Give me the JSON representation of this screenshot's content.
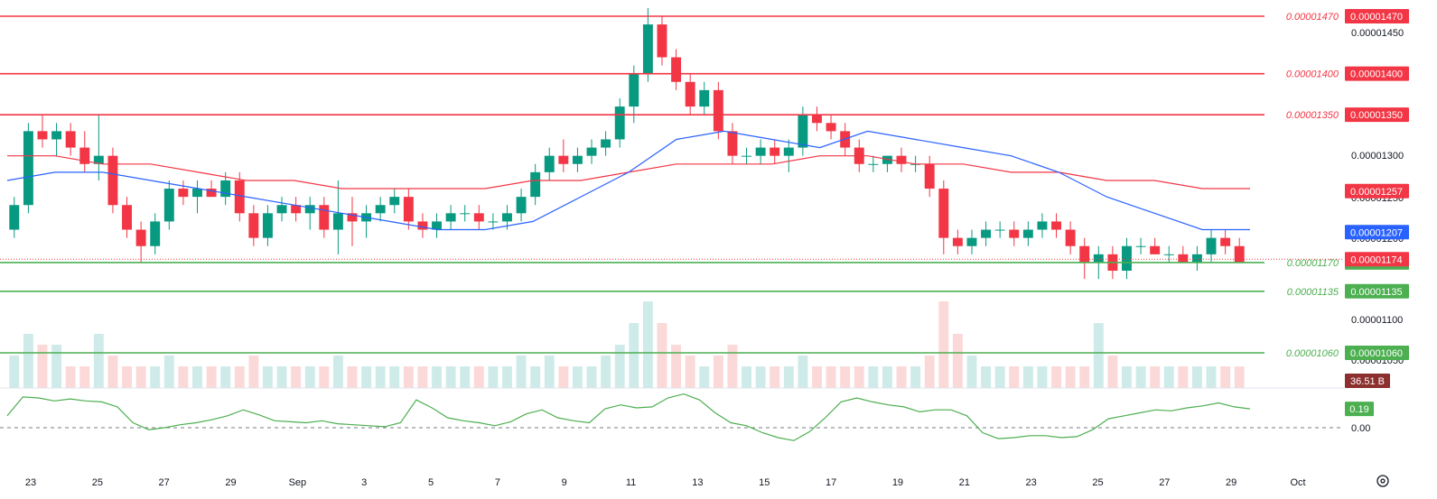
{
  "chart_data": {
    "type": "candlestick",
    "title": "",
    "x_ticks": [
      "23",
      "25",
      "27",
      "29",
      "Sep",
      "3",
      "5",
      "7",
      "9",
      "11",
      "13",
      "15",
      "17",
      "19",
      "21",
      "23",
      "25",
      "27",
      "29",
      "Oct"
    ],
    "y_ticks": [
      "0.00001450",
      "0.00001300",
      "0.00001250",
      "0.00001200",
      "0.00001100",
      "0.00001050"
    ],
    "ylim": [
      1.03e-05,
      1.48e-05
    ],
    "resistance_levels": [
      {
        "label": "0.00001470",
        "value": 1.47e-05,
        "color": "#f23645"
      },
      {
        "label": "0.00001400",
        "value": 1.4e-05,
        "color": "#f23645"
      },
      {
        "label": "0.00001350",
        "value": 1.35e-05,
        "color": "#f23645"
      }
    ],
    "support_levels": [
      {
        "label": "0.00001170",
        "value": 1.17e-05,
        "color": "#4caf50"
      },
      {
        "label": "0.00001135",
        "value": 1.135e-05,
        "color": "#4caf50"
      },
      {
        "label": "0.00001060",
        "value": 1.06e-05,
        "color": "#4caf50"
      }
    ],
    "price_tags": [
      {
        "label": "0.00001257",
        "value": 1.257e-05,
        "color": "#f23645"
      },
      {
        "label": "0.00001207",
        "value": 1.207e-05,
        "color": "#2962ff"
      },
      {
        "label": "0.00001174",
        "value": 1.174e-05,
        "color": "#f23645"
      }
    ],
    "volume_tag": "36.51 B",
    "oscillator": {
      "value_label": "0.19",
      "zero_label": "0.00"
    },
    "ma_fast": [
      1.27e-05,
      1.28e-05,
      1.28e-05,
      1.27e-05,
      1.26e-05,
      1.25e-05,
      1.24e-05,
      1.23e-05,
      1.22e-05,
      1.21e-05,
      1.21e-05,
      1.22e-05,
      1.25e-05,
      1.28e-05,
      1.32e-05,
      1.33e-05,
      1.32e-05,
      1.31e-05,
      1.33e-05,
      1.32e-05,
      1.31e-05,
      1.3e-05,
      1.28e-05,
      1.25e-05,
      1.23e-05,
      1.21e-05,
      1.21e-05
    ],
    "ma_slow": [
      1.3e-05,
      1.3e-05,
      1.29e-05,
      1.29e-05,
      1.28e-05,
      1.27e-05,
      1.27e-05,
      1.26e-05,
      1.26e-05,
      1.26e-05,
      1.26e-05,
      1.27e-05,
      1.27e-05,
      1.28e-05,
      1.29e-05,
      1.29e-05,
      1.29e-05,
      1.3e-05,
      1.3e-05,
      1.29e-05,
      1.29e-05,
      1.28e-05,
      1.28e-05,
      1.27e-05,
      1.27e-05,
      1.26e-05,
      1.26e-05
    ],
    "candles": [
      [
        1.21e-05,
        1.25e-05,
        1.2e-05,
        1.24e-05
      ],
      [
        1.24e-05,
        1.34e-05,
        1.23e-05,
        1.33e-05
      ],
      [
        1.33e-05,
        1.35e-05,
        1.31e-05,
        1.32e-05
      ],
      [
        1.32e-05,
        1.34e-05,
        1.3e-05,
        1.33e-05
      ],
      [
        1.33e-05,
        1.34e-05,
        1.3e-05,
        1.31e-05
      ],
      [
        1.31e-05,
        1.33e-05,
        1.28e-05,
        1.29e-05
      ],
      [
        1.29e-05,
        1.35e-05,
        1.27e-05,
        1.3e-05
      ],
      [
        1.3e-05,
        1.31e-05,
        1.23e-05,
        1.24e-05
      ],
      [
        1.24e-05,
        1.25e-05,
        1.2e-05,
        1.21e-05
      ],
      [
        1.21e-05,
        1.22e-05,
        1.17e-05,
        1.19e-05
      ],
      [
        1.19e-05,
        1.23e-05,
        1.18e-05,
        1.22e-05
      ],
      [
        1.22e-05,
        1.27e-05,
        1.21e-05,
        1.26e-05
      ],
      [
        1.26e-05,
        1.27e-05,
        1.24e-05,
        1.25e-05
      ],
      [
        1.25e-05,
        1.27e-05,
        1.23e-05,
        1.26e-05
      ],
      [
        1.26e-05,
        1.27e-05,
        1.25e-05,
        1.25e-05
      ],
      [
        1.25e-05,
        1.28e-05,
        1.24e-05,
        1.27e-05
      ],
      [
        1.27e-05,
        1.28e-05,
        1.22e-05,
        1.23e-05
      ],
      [
        1.23e-05,
        1.24e-05,
        1.19e-05,
        1.2e-05
      ],
      [
        1.2e-05,
        1.24e-05,
        1.19e-05,
        1.23e-05
      ],
      [
        1.23e-05,
        1.25e-05,
        1.22e-05,
        1.24e-05
      ],
      [
        1.24e-05,
        1.25e-05,
        1.22e-05,
        1.23e-05
      ],
      [
        1.23e-05,
        1.25e-05,
        1.21e-05,
        1.24e-05
      ],
      [
        1.24e-05,
        1.25e-05,
        1.2e-05,
        1.21e-05
      ],
      [
        1.21e-05,
        1.27e-05,
        1.18e-05,
        1.23e-05
      ],
      [
        1.23e-05,
        1.25e-05,
        1.19e-05,
        1.22e-05
      ],
      [
        1.22e-05,
        1.24e-05,
        1.2e-05,
        1.23e-05
      ],
      [
        1.23e-05,
        1.25e-05,
        1.22e-05,
        1.24e-05
      ],
      [
        1.24e-05,
        1.26e-05,
        1.23e-05,
        1.25e-05
      ],
      [
        1.25e-05,
        1.26e-05,
        1.21e-05,
        1.22e-05
      ],
      [
        1.22e-05,
        1.23e-05,
        1.2e-05,
        1.21e-05
      ],
      [
        1.21e-05,
        1.23e-05,
        1.2e-05,
        1.22e-05
      ],
      [
        1.22e-05,
        1.24e-05,
        1.21e-05,
        1.23e-05
      ],
      [
        1.23e-05,
        1.24e-05,
        1.22e-05,
        1.23e-05
      ],
      [
        1.23e-05,
        1.24e-05,
        1.21e-05,
        1.22e-05
      ],
      [
        1.22e-05,
        1.23e-05,
        1.21e-05,
        1.22e-05
      ],
      [
        1.22e-05,
        1.24e-05,
        1.21e-05,
        1.23e-05
      ],
      [
        1.23e-05,
        1.26e-05,
        1.22e-05,
        1.25e-05
      ],
      [
        1.25e-05,
        1.29e-05,
        1.24e-05,
        1.28e-05
      ],
      [
        1.28e-05,
        1.31e-05,
        1.27e-05,
        1.3e-05
      ],
      [
        1.3e-05,
        1.32e-05,
        1.28e-05,
        1.29e-05
      ],
      [
        1.29e-05,
        1.31e-05,
        1.28e-05,
        1.3e-05
      ],
      [
        1.3e-05,
        1.32e-05,
        1.29e-05,
        1.31e-05
      ],
      [
        1.31e-05,
        1.33e-05,
        1.3e-05,
        1.32e-05
      ],
      [
        1.32e-05,
        1.37e-05,
        1.31e-05,
        1.36e-05
      ],
      [
        1.36e-05,
        1.41e-05,
        1.34e-05,
        1.4e-05
      ],
      [
        1.4e-05,
        1.48e-05,
        1.39e-05,
        1.46e-05
      ],
      [
        1.46e-05,
        1.47e-05,
        1.41e-05,
        1.42e-05
      ],
      [
        1.42e-05,
        1.43e-05,
        1.38e-05,
        1.39e-05
      ],
      [
        1.39e-05,
        1.4e-05,
        1.35e-05,
        1.36e-05
      ],
      [
        1.36e-05,
        1.39e-05,
        1.35e-05,
        1.38e-05
      ],
      [
        1.38e-05,
        1.39e-05,
        1.32e-05,
        1.33e-05
      ],
      [
        1.33e-05,
        1.34e-05,
        1.29e-05,
        1.3e-05
      ],
      [
        1.3e-05,
        1.31e-05,
        1.29e-05,
        1.3e-05
      ],
      [
        1.3e-05,
        1.32e-05,
        1.29e-05,
        1.31e-05
      ],
      [
        1.31e-05,
        1.32e-05,
        1.29e-05,
        1.3e-05
      ],
      [
        1.3e-05,
        1.32e-05,
        1.28e-05,
        1.31e-05
      ],
      [
        1.31e-05,
        1.36e-05,
        1.3e-05,
        1.35e-05
      ],
      [
        1.35e-05,
        1.36e-05,
        1.33e-05,
        1.34e-05
      ],
      [
        1.34e-05,
        1.35e-05,
        1.32e-05,
        1.33e-05
      ],
      [
        1.33e-05,
        1.34e-05,
        1.3e-05,
        1.31e-05
      ],
      [
        1.31e-05,
        1.32e-05,
        1.28e-05,
        1.29e-05
      ],
      [
        1.29e-05,
        1.3e-05,
        1.28e-05,
        1.29e-05
      ],
      [
        1.29e-05,
        1.3e-05,
        1.28e-05,
        1.3e-05
      ],
      [
        1.3e-05,
        1.31e-05,
        1.28e-05,
        1.29e-05
      ],
      [
        1.29e-05,
        1.3e-05,
        1.28e-05,
        1.29e-05
      ],
      [
        1.29e-05,
        1.3e-05,
        1.25e-05,
        1.26e-05
      ],
      [
        1.26e-05,
        1.27e-05,
        1.18e-05,
        1.2e-05
      ],
      [
        1.2e-05,
        1.21e-05,
        1.18e-05,
        1.19e-05
      ],
      [
        1.19e-05,
        1.21e-05,
        1.18e-05,
        1.2e-05
      ],
      [
        1.2e-05,
        1.22e-05,
        1.19e-05,
        1.21e-05
      ],
      [
        1.21e-05,
        1.22e-05,
        1.2e-05,
        1.21e-05
      ],
      [
        1.21e-05,
        1.22e-05,
        1.19e-05,
        1.2e-05
      ],
      [
        1.2e-05,
        1.22e-05,
        1.19e-05,
        1.21e-05
      ],
      [
        1.21e-05,
        1.23e-05,
        1.2e-05,
        1.22e-05
      ],
      [
        1.22e-05,
        1.23e-05,
        1.2e-05,
        1.21e-05
      ],
      [
        1.21e-05,
        1.22e-05,
        1.18e-05,
        1.19e-05
      ],
      [
        1.19e-05,
        1.2e-05,
        1.15e-05,
        1.17e-05
      ],
      [
        1.17e-05,
        1.19e-05,
        1.15e-05,
        1.18e-05
      ],
      [
        1.18e-05,
        1.19e-05,
        1.15e-05,
        1.16e-05
      ],
      [
        1.16e-05,
        1.2e-05,
        1.15e-05,
        1.19e-05
      ],
      [
        1.19e-05,
        1.2e-05,
        1.18e-05,
        1.19e-05
      ],
      [
        1.19e-05,
        1.2e-05,
        1.18e-05,
        1.18e-05
      ],
      [
        1.18e-05,
        1.19e-05,
        1.17e-05,
        1.18e-05
      ],
      [
        1.18e-05,
        1.19e-05,
        1.17e-05,
        1.17e-05
      ],
      [
        1.17e-05,
        1.19e-05,
        1.16e-05,
        1.18e-05
      ],
      [
        1.18e-05,
        1.21e-05,
        1.17e-05,
        1.2e-05
      ],
      [
        1.2e-05,
        1.21e-05,
        1.18e-05,
        1.19e-05
      ],
      [
        1.19e-05,
        1.2e-05,
        1.17e-05,
        1.17e-05
      ]
    ],
    "volumes": [
      3,
      5,
      4,
      4,
      2,
      2,
      5,
      3,
      2,
      2,
      2,
      3,
      2,
      2,
      2,
      2,
      2,
      3,
      2,
      2,
      2,
      2,
      2,
      3,
      2,
      2,
      2,
      2,
      2,
      2,
      2,
      2,
      2,
      2,
      2,
      2,
      3,
      2,
      3,
      2,
      2,
      2,
      3,
      4,
      6,
      8,
      6,
      4,
      3,
      2,
      3,
      4,
      2,
      2,
      2,
      2,
      3,
      2,
      2,
      2,
      2,
      2,
      2,
      2,
      2,
      3,
      8,
      5,
      3,
      2,
      2,
      2,
      2,
      2,
      2,
      2,
      2,
      6,
      3,
      2,
      2,
      2,
      2,
      2,
      2,
      2,
      2,
      2
    ],
    "oscillator_values": [
      0.12,
      0.31,
      0.3,
      0.27,
      0.29,
      0.27,
      0.26,
      0.21,
      0.05,
      -0.02,
      0.0,
      0.03,
      0.05,
      0.08,
      0.12,
      0.18,
      0.13,
      0.07,
      0.06,
      0.05,
      0.07,
      0.04,
      0.03,
      0.02,
      0.01,
      0.05,
      0.28,
      0.2,
      0.1,
      0.07,
      0.05,
      0.02,
      0.06,
      0.14,
      0.18,
      0.1,
      0.07,
      0.05,
      0.19,
      0.23,
      0.2,
      0.21,
      0.3,
      0.34,
      0.28,
      0.15,
      0.05,
      0.02,
      -0.05,
      -0.1,
      -0.13,
      -0.04,
      0.1,
      0.26,
      0.3,
      0.26,
      0.23,
      0.21,
      0.16,
      0.18,
      0.18,
      0.12,
      -0.05,
      -0.11,
      -0.1,
      -0.08,
      -0.08,
      -0.1,
      -0.09,
      -0.02,
      0.09,
      0.12,
      0.15,
      0.18,
      0.17,
      0.2,
      0.22,
      0.25,
      0.21,
      0.19
    ]
  }
}
